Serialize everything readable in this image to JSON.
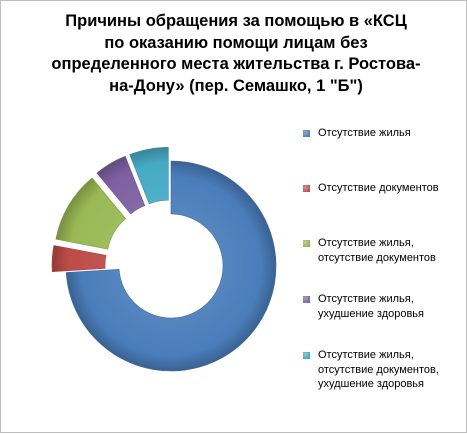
{
  "chart_data": {
    "type": "pie",
    "style": "exploded doughnut, 3-D shading",
    "title": "Причины обращения за  помощью в «КСЦ\nпо оказанию помощи лицам без\nопределенного места жительства г. Ростова-\nна-Дону» (пер. Семашко, 1 \"Б\")",
    "legend_position": "right",
    "series": [
      {
        "slices": [
          {
            "label": "Отсутствие жилья",
            "value": 74,
            "color": "#4a7ebb"
          },
          {
            "label": "Отсутствие документов",
            "value": 4,
            "color": "#be4b48"
          },
          {
            "label": "Отсутствие жилья,\nотсутствие документов",
            "value": 11,
            "color": "#98b954"
          },
          {
            "label": "Отсутствие жилья,\nухудшение  здоровья",
            "value": 5,
            "color": "#7d60a0"
          },
          {
            "label": "Отсутствие жилья,\nотсутствие документов,\nухудшение  здоровья",
            "value": 6,
            "color": "#46aac5"
          }
        ]
      }
    ]
  }
}
